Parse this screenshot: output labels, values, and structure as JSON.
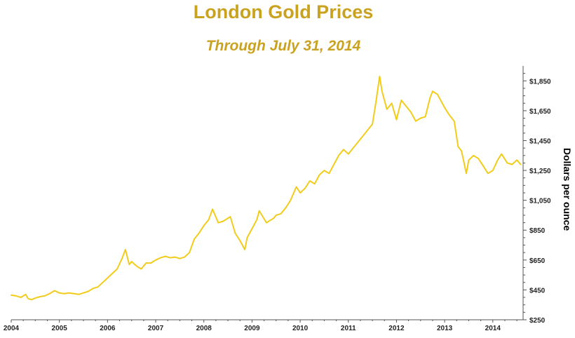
{
  "chart_data": {
    "type": "line",
    "title": "London Gold Prices",
    "subtitle": "Through July 31, 2014",
    "xlabel": "",
    "ylabel": "Dollars per ounce",
    "xlim": [
      2004.0,
      2014.6
    ],
    "ylim": [
      250,
      1950
    ],
    "x_ticks": [
      2004,
      2005,
      2006,
      2007,
      2008,
      2009,
      2010,
      2011,
      2012,
      2013,
      2014
    ],
    "y_ticks": [
      250,
      450,
      650,
      850,
      1050,
      1250,
      1450,
      1650,
      1850
    ],
    "y_tick_labels": [
      "$250",
      "$450",
      "$650",
      "$850",
      "$1,050",
      "$1,250",
      "$1,450",
      "$1,650",
      "$1,850"
    ],
    "y_axis_position": "right",
    "grid": false,
    "colors": {
      "line": "#f2cc1a",
      "title": "#c9a21f",
      "axis": "#555555"
    },
    "series": [
      {
        "x": [
          2004.0,
          2004.1,
          2004.2,
          2004.3,
          2004.35,
          2004.42,
          2004.5,
          2004.6,
          2004.7,
          2004.8,
          2004.9,
          2005.0,
          2005.1,
          2005.2,
          2005.3,
          2005.4,
          2005.5,
          2005.6,
          2005.7,
          2005.8,
          2005.9,
          2006.0,
          2006.1,
          2006.2,
          2006.3,
          2006.37,
          2006.45,
          2006.5,
          2006.6,
          2006.7,
          2006.8,
          2006.9,
          2007.0,
          2007.1,
          2007.2,
          2007.3,
          2007.4,
          2007.5,
          2007.6,
          2007.7,
          2007.8,
          2007.9,
          2008.0,
          2008.1,
          2008.18,
          2008.3,
          2008.4,
          2008.5,
          2008.55,
          2008.65,
          2008.75,
          2008.8,
          2008.85,
          2008.9,
          2009.0,
          2009.1,
          2009.15,
          2009.3,
          2009.45,
          2009.5,
          2009.6,
          2009.7,
          2009.8,
          2009.92,
          2010.0,
          2010.1,
          2010.2,
          2010.3,
          2010.4,
          2010.5,
          2010.6,
          2010.7,
          2010.8,
          2010.9,
          2011.0,
          2011.1,
          2011.2,
          2011.3,
          2011.4,
          2011.5,
          2011.57,
          2011.65,
          2011.7,
          2011.8,
          2011.9,
          2012.0,
          2012.1,
          2012.2,
          2012.3,
          2012.4,
          2012.5,
          2012.6,
          2012.7,
          2012.75,
          2012.85,
          2012.95,
          2013.0,
          2013.1,
          2013.2,
          2013.28,
          2013.35,
          2013.45,
          2013.5,
          2013.6,
          2013.7,
          2013.8,
          2013.9,
          2014.0,
          2014.1,
          2014.18,
          2014.3,
          2014.4,
          2014.5,
          2014.58
        ],
        "values": [
          415,
          410,
          400,
          420,
          392,
          385,
          395,
          405,
          410,
          425,
          445,
          430,
          425,
          430,
          425,
          420,
          430,
          440,
          460,
          470,
          500,
          530,
          560,
          590,
          660,
          720,
          620,
          640,
          610,
          590,
          630,
          630,
          650,
          665,
          675,
          665,
          670,
          660,
          670,
          700,
          790,
          830,
          880,
          920,
          990,
          900,
          910,
          930,
          940,
          830,
          780,
          750,
          720,
          800,
          860,
          920,
          980,
          900,
          930,
          950,
          960,
          1000,
          1050,
          1140,
          1100,
          1130,
          1180,
          1160,
          1220,
          1250,
          1230,
          1290,
          1350,
          1390,
          1360,
          1400,
          1440,
          1480,
          1520,
          1560,
          1700,
          1880,
          1780,
          1660,
          1700,
          1590,
          1720,
          1680,
          1640,
          1580,
          1600,
          1610,
          1740,
          1780,
          1760,
          1700,
          1670,
          1620,
          1580,
          1410,
          1380,
          1230,
          1320,
          1350,
          1330,
          1280,
          1230,
          1250,
          1320,
          1360,
          1300,
          1290,
          1320,
          1290
        ]
      }
    ]
  }
}
